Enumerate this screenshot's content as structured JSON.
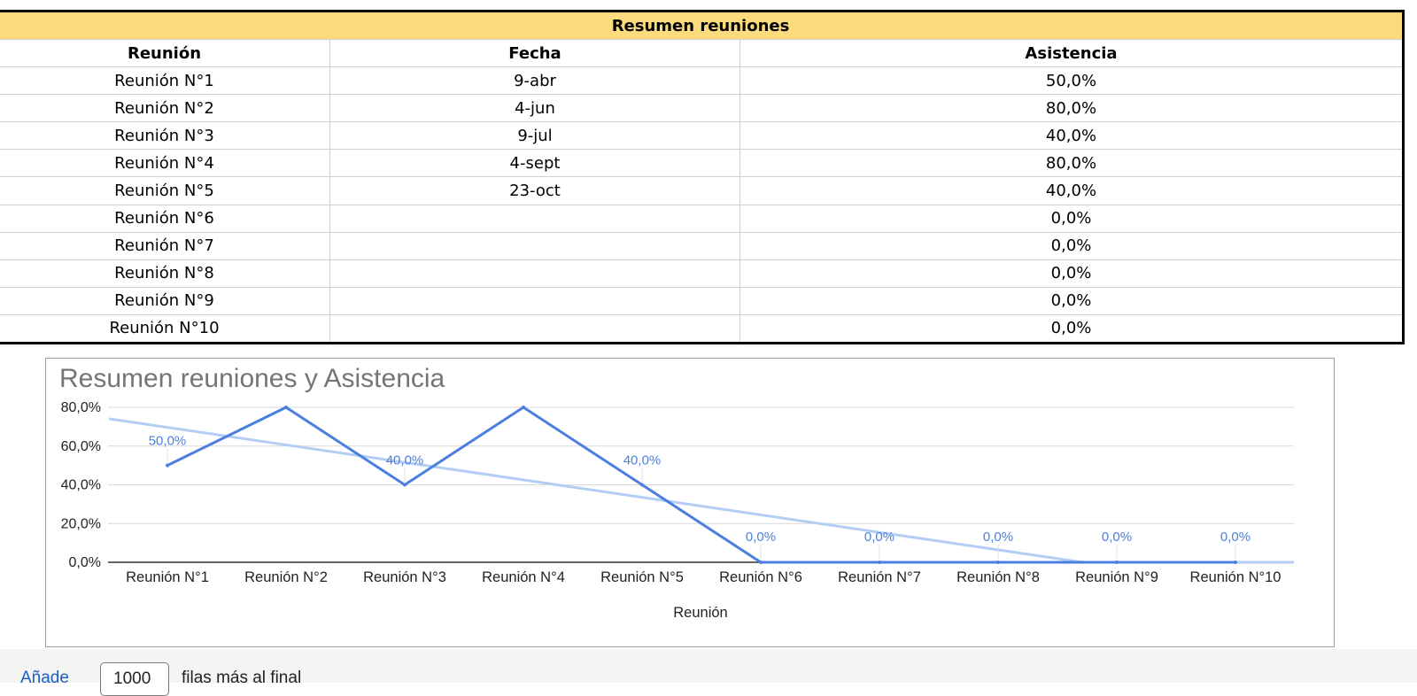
{
  "table": {
    "title": "Resumen reuniones",
    "headers": [
      "Reunión",
      "Fecha",
      "Asistencia"
    ],
    "rows": [
      [
        "Reunión N°1",
        "9-abr",
        "50,0%"
      ],
      [
        "Reunión N°2",
        "4-jun",
        "80,0%"
      ],
      [
        "Reunión N°3",
        "9-jul",
        "40,0%"
      ],
      [
        "Reunión N°4",
        "4-sept",
        "80,0%"
      ],
      [
        "Reunión N°5",
        "23-oct",
        "40,0%"
      ],
      [
        "Reunión N°6",
        "",
        "0,0%"
      ],
      [
        "Reunión N°7",
        "",
        "0,0%"
      ],
      [
        "Reunión N°8",
        "",
        "0,0%"
      ],
      [
        "Reunión N°9",
        "",
        "0,0%"
      ],
      [
        "Reunión N°10",
        "",
        "0,0%"
      ]
    ]
  },
  "chart_data": {
    "type": "line",
    "title": "Resumen reuniones y Asistencia",
    "xlabel": "Reunión",
    "ylabel": "",
    "categories": [
      "Reunión N°1",
      "Reunión N°2",
      "Reunión N°3",
      "Reunión N°4",
      "Reunión N°5",
      "Reunión N°6",
      "Reunión N°7",
      "Reunión N°8",
      "Reunión N°9",
      "Reunión N°10"
    ],
    "series": [
      {
        "values": [
          50,
          80,
          40,
          80,
          40,
          0,
          0,
          0,
          0,
          0
        ],
        "data_labels": [
          "50,0%",
          "",
          "40,0%",
          "",
          "40,0%",
          "0,0%",
          "0,0%",
          "0,0%",
          "0,0%",
          "0,0%"
        ],
        "color": "#4a7fe0"
      }
    ],
    "trendline": {
      "type": "linear",
      "color": "#b4cdf5"
    },
    "ylim": [
      0,
      80
    ],
    "yticks": [
      "0,0%",
      "20,0%",
      "40,0%",
      "60,0%",
      "80,0%"
    ],
    "grid": true,
    "legend": "none"
  },
  "footer": {
    "add_link": "Añade",
    "rows_value": "1000",
    "suffix": "filas más al final"
  },
  "colors": {
    "title_fill": "#fbdb7c",
    "series_line": "#4a7fe0",
    "trend_line": "#b4cdf5"
  }
}
